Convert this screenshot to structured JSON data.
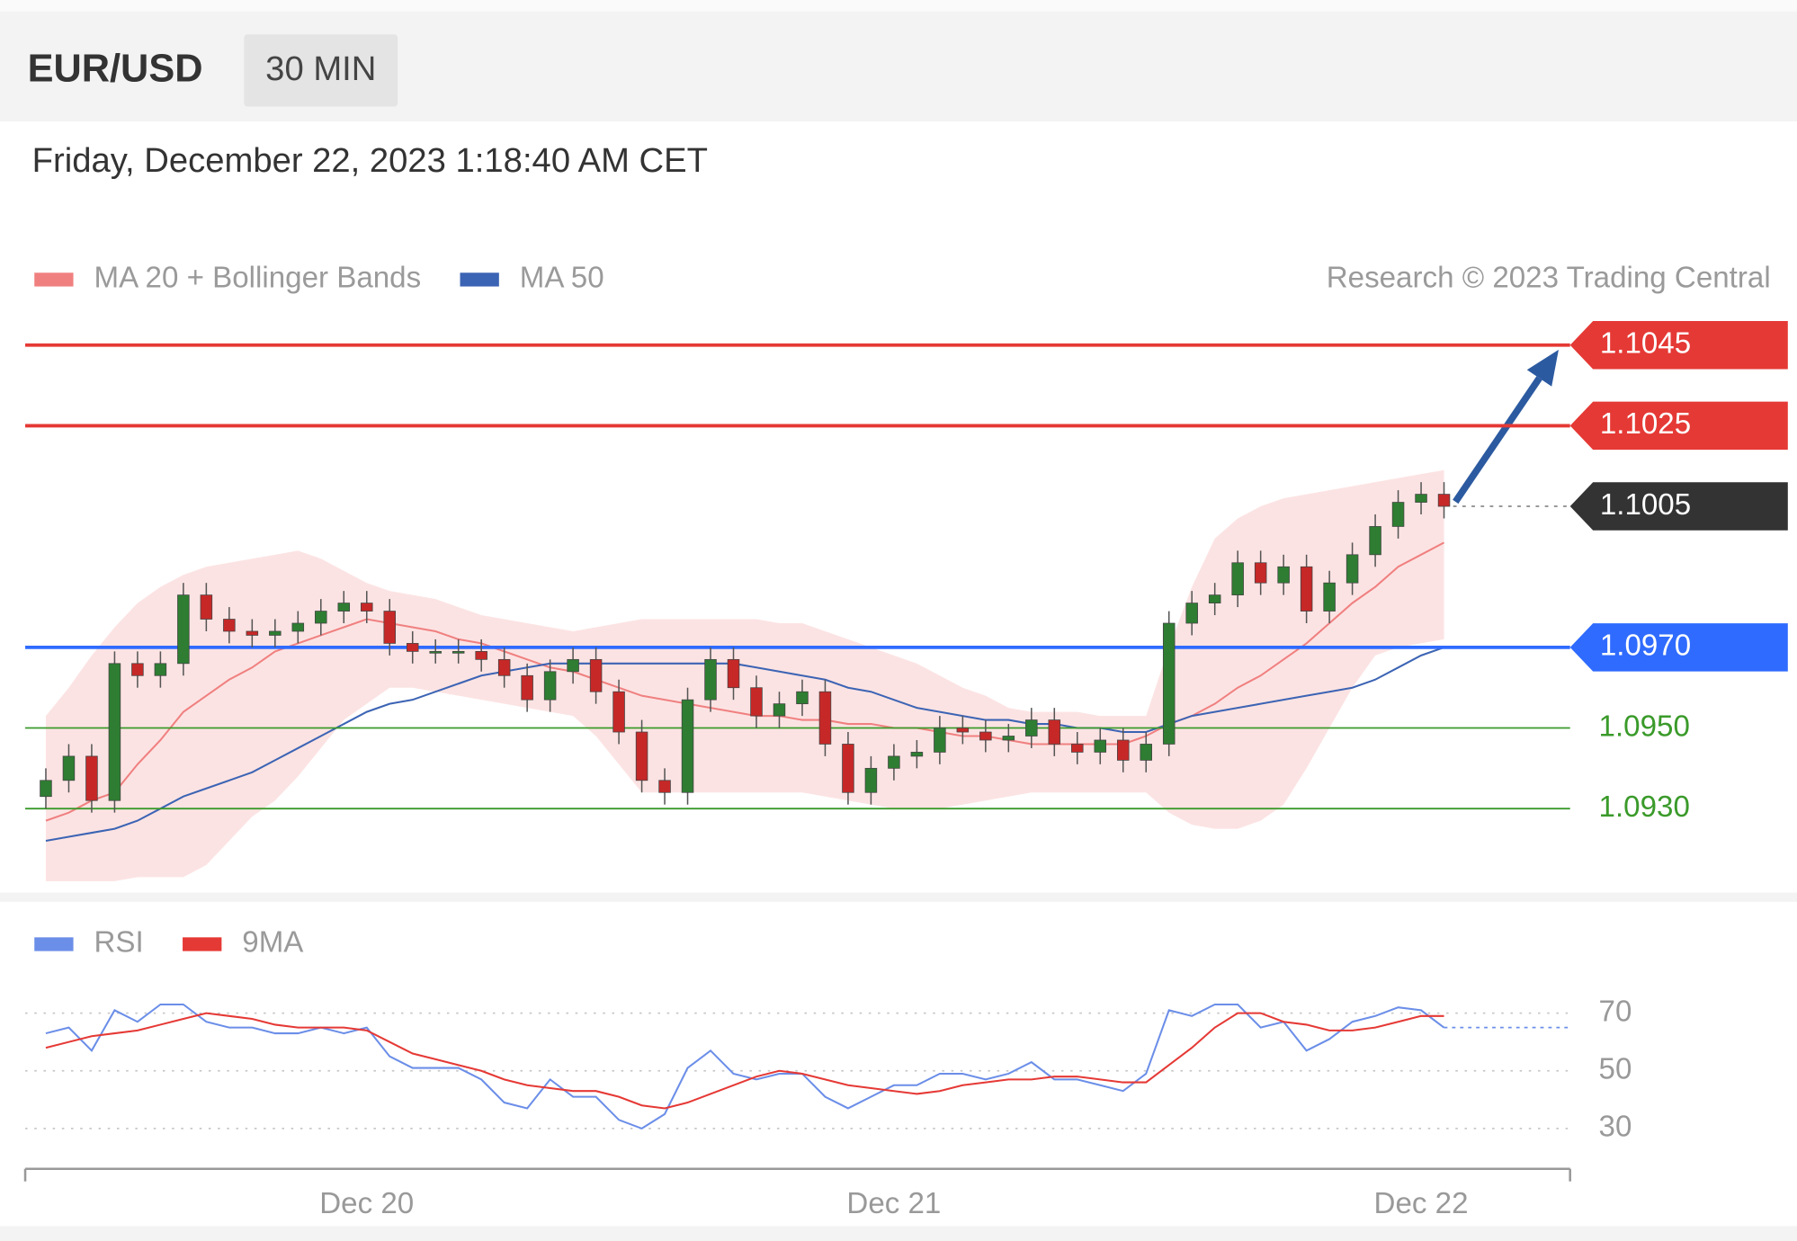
{
  "header": {
    "symbol": "EUR/USD",
    "timeframe": "30 MIN",
    "timestamp": "Friday, December 22, 2023 1:18:40 AM CET"
  },
  "chart_data": [
    {
      "type": "candlestick",
      "credit": "Research © 2023 Trading Central",
      "up_color": "#2e7d32",
      "down_color": "#c62828",
      "categories": [
        null,
        null,
        null,
        null,
        null,
        null,
        null,
        null,
        null,
        null,
        null,
        null,
        null,
        null,
        "Dec 20",
        null,
        null,
        null,
        null,
        null,
        null,
        null,
        null,
        null,
        null,
        null,
        null,
        null,
        null,
        null,
        null,
        null,
        null,
        null,
        null,
        null,
        null,
        "Dec 21",
        null,
        null,
        null,
        null,
        null,
        null,
        null,
        null,
        null,
        null,
        null,
        null,
        null,
        null,
        null,
        null,
        null,
        null,
        null,
        null,
        null,
        null,
        "Dec 22",
        null
      ],
      "open": [
        1.0933,
        1.0937,
        1.0943,
        1.0932,
        1.0966,
        1.0963,
        1.0966,
        1.0983,
        1.0977,
        1.0974,
        1.0973,
        1.0974,
        1.0976,
        1.0979,
        1.0981,
        1.0979,
        1.0971,
        1.0969,
        1.0969,
        1.0969,
        1.0967,
        1.0963,
        1.0957,
        1.0964,
        1.0967,
        1.0959,
        1.0949,
        1.0937,
        1.0934,
        1.0957,
        1.0967,
        1.096,
        1.0953,
        1.0956,
        1.0959,
        1.0946,
        1.0934,
        1.094,
        1.0943,
        1.0944,
        1.095,
        1.0949,
        1.0947,
        1.0948,
        1.0952,
        1.0946,
        1.0944,
        1.0947,
        1.0942,
        1.0946,
        1.0976,
        1.0981,
        1.0983,
        1.0991,
        1.0986,
        1.099,
        1.0979,
        1.0986,
        1.0993,
        1.1,
        1.1006,
        1.1008
      ],
      "high": [
        1.094,
        1.0946,
        1.0946,
        1.0969,
        1.0969,
        1.0969,
        1.0986,
        1.0986,
        1.098,
        1.0977,
        1.0977,
        1.0979,
        1.0982,
        1.0984,
        1.0984,
        1.0982,
        1.0974,
        1.0972,
        1.0972,
        1.0972,
        1.097,
        1.0966,
        1.0967,
        1.097,
        1.097,
        1.0962,
        1.0952,
        1.094,
        1.096,
        1.097,
        1.097,
        1.0963,
        1.0959,
        1.0962,
        1.0962,
        1.0949,
        1.0943,
        1.0946,
        1.0947,
        1.0953,
        1.0953,
        1.0952,
        1.0951,
        1.0955,
        1.0955,
        1.0949,
        1.095,
        1.095,
        1.0949,
        1.0979,
        1.0984,
        1.0986,
        1.0994,
        1.0994,
        1.0993,
        1.0993,
        1.0989,
        1.0996,
        1.1003,
        1.1009,
        1.1011,
        1.1011
      ],
      "low": [
        1.093,
        1.0934,
        1.0929,
        1.0929,
        1.096,
        1.096,
        1.0963,
        1.0974,
        1.0971,
        1.097,
        1.097,
        1.0971,
        1.0973,
        1.0976,
        1.0976,
        1.0968,
        1.0966,
        1.0966,
        1.0966,
        1.0964,
        1.096,
        1.0954,
        1.0954,
        1.0961,
        1.0956,
        1.0946,
        1.0934,
        1.0931,
        1.0931,
        1.0954,
        1.0957,
        1.095,
        1.095,
        1.0953,
        1.0943,
        1.0931,
        1.0931,
        1.0937,
        1.094,
        1.0941,
        1.0946,
        1.0944,
        1.0944,
        1.0945,
        1.0943,
        1.0941,
        1.0941,
        1.0939,
        1.0939,
        1.0943,
        1.0973,
        1.0978,
        1.098,
        1.0983,
        1.0983,
        1.0976,
        1.0976,
        1.0983,
        1.099,
        1.0997,
        1.1003,
        1.1002
      ],
      "close": [
        1.0937,
        1.0943,
        1.0932,
        1.0966,
        1.0963,
        1.0966,
        1.0983,
        1.0977,
        1.0974,
        1.0973,
        1.0974,
        1.0976,
        1.0979,
        1.0981,
        1.0979,
        1.0971,
        1.0969,
        1.0969,
        1.0969,
        1.0967,
        1.0963,
        1.0957,
        1.0964,
        1.0967,
        1.0959,
        1.0949,
        1.0937,
        1.0934,
        1.0957,
        1.0967,
        1.096,
        1.0953,
        1.0956,
        1.0959,
        1.0946,
        1.0934,
        1.094,
        1.0943,
        1.0944,
        1.095,
        1.0949,
        1.0947,
        1.0948,
        1.0952,
        1.0946,
        1.0944,
        1.0947,
        1.0942,
        1.0946,
        1.0976,
        1.0981,
        1.0983,
        1.0991,
        1.0986,
        1.099,
        1.0979,
        1.0986,
        1.0993,
        1.1,
        1.1006,
        1.1008,
        1.1005
      ],
      "series": [
        {
          "name": "MA 20 + Bollinger Bands",
          "color": "#f08080",
          "values": [
            1.0927,
            1.0929,
            1.0932,
            1.0934,
            1.0941,
            1.0947,
            1.0954,
            1.0958,
            1.0962,
            1.0965,
            1.0969,
            1.0971,
            1.0973,
            1.0975,
            1.0977,
            1.0976,
            1.0975,
            1.0974,
            1.0972,
            1.0971,
            1.0969,
            1.0967,
            1.0965,
            1.0964,
            1.0962,
            1.096,
            1.0958,
            1.0957,
            1.0956,
            1.0955,
            1.0954,
            1.0953,
            1.0953,
            1.0952,
            1.0952,
            1.0951,
            1.0951,
            1.095,
            1.095,
            1.0949,
            1.0948,
            1.0948,
            1.0947,
            1.0946,
            1.0946,
            1.0946,
            1.0946,
            1.0946,
            1.0948,
            1.0951,
            1.0953,
            1.0956,
            1.096,
            1.0963,
            1.0967,
            1.0971,
            1.0976,
            1.0981,
            1.0985,
            1.099,
            1.0993,
            1.0996
          ],
          "upper": [
            1.0953,
            1.096,
            1.0968,
            1.0975,
            1.0981,
            1.0985,
            1.0988,
            1.099,
            1.0991,
            1.0992,
            1.0993,
            1.0994,
            1.0992,
            1.0989,
            1.0986,
            1.0984,
            1.0983,
            1.0982,
            1.098,
            1.0978,
            1.0977,
            1.0976,
            1.0975,
            1.0974,
            1.0975,
            1.0976,
            1.0977,
            1.0977,
            1.0977,
            1.0977,
            1.0977,
            1.0977,
            1.0976,
            1.0976,
            1.0974,
            1.0972,
            1.097,
            1.0968,
            1.0966,
            1.0963,
            1.096,
            1.0958,
            1.0955,
            1.0954,
            1.0954,
            1.0954,
            1.0953,
            1.0953,
            1.0953,
            1.097,
            1.0985,
            1.0997,
            1.1002,
            1.1005,
            1.1007,
            1.1008,
            1.1009,
            1.101,
            1.1011,
            1.1012,
            1.1013,
            1.1014
          ],
          "lower": [
            1.0912,
            1.0912,
            1.0912,
            1.0912,
            1.0913,
            1.0913,
            1.0913,
            1.0916,
            1.0922,
            1.0928,
            1.0932,
            1.0938,
            1.0945,
            1.0952,
            1.0956,
            1.096,
            1.096,
            1.0959,
            1.0958,
            1.0957,
            1.0956,
            1.0955,
            1.0954,
            1.0953,
            1.0948,
            1.0941,
            1.0934,
            1.0934,
            1.0934,
            1.0934,
            1.0934,
            1.0934,
            1.0934,
            1.0934,
            1.0933,
            1.0932,
            1.0931,
            1.093,
            1.093,
            1.093,
            1.0931,
            1.0932,
            1.0933,
            1.0934,
            1.0934,
            1.0934,
            1.0934,
            1.0934,
            1.0934,
            1.0929,
            1.0926,
            1.0925,
            1.0925,
            1.0927,
            1.0931,
            1.094,
            1.095,
            1.096,
            1.0968,
            1.097,
            1.0971,
            1.0972
          ]
        },
        {
          "name": "MA 50",
          "color": "#3c64b4",
          "values": [
            1.0922,
            1.0923,
            1.0924,
            1.0925,
            1.0927,
            1.093,
            1.0933,
            1.0935,
            1.0937,
            1.0939,
            1.0942,
            1.0945,
            1.0948,
            1.0951,
            1.0954,
            1.0956,
            1.0957,
            1.0959,
            1.0961,
            1.0963,
            1.0964,
            1.0965,
            1.0966,
            1.0966,
            1.0966,
            1.0966,
            1.0966,
            1.0966,
            1.0966,
            1.0966,
            1.0966,
            1.0965,
            1.0964,
            1.0963,
            1.0962,
            1.096,
            1.0959,
            1.0957,
            1.0955,
            1.0954,
            1.0953,
            1.0952,
            1.0952,
            1.0951,
            1.0951,
            1.095,
            1.095,
            1.0949,
            1.0949,
            1.0951,
            1.0953,
            1.0954,
            1.0955,
            1.0956,
            1.0957,
            1.0958,
            1.0959,
            1.096,
            1.0962,
            1.0965,
            1.0968,
            1.097
          ]
        }
      ],
      "levels": [
        {
          "value": 1.1045,
          "color": "#e53935",
          "line": "solid",
          "tag": true,
          "target": true
        },
        {
          "value": 1.1025,
          "color": "#e53935",
          "line": "solid",
          "tag": true
        },
        {
          "value": 1.1005,
          "color": "#333333",
          "line": "dotted",
          "tag": true
        },
        {
          "value": 1.097,
          "label": "1.0970",
          "color": "#2f6bff",
          "line": "solid",
          "tag": true
        },
        {
          "value": 1.095,
          "label": "1.0950",
          "color": "#3a9a2a",
          "line": "solid",
          "tag": false
        },
        {
          "value": 1.093,
          "label": "1.0930",
          "color": "#3a9a2a",
          "line": "solid",
          "tag": false
        }
      ],
      "ylim": [
        1.091,
        1.1055
      ]
    },
    {
      "type": "line",
      "series": [
        {
          "name": "RSI",
          "color": "#6b8ee8",
          "extend": true,
          "values": [
            63,
            65,
            57,
            71,
            67,
            73,
            73,
            67,
            65,
            65,
            63,
            63,
            65,
            63,
            65,
            55,
            51,
            51,
            51,
            47,
            39,
            37,
            47,
            41,
            41,
            33,
            30,
            35,
            51,
            57,
            49,
            47,
            49,
            49,
            41,
            37,
            41,
            45,
            45,
            49,
            49,
            47,
            49,
            53,
            47,
            47,
            45,
            43,
            49,
            71,
            69,
            73,
            73,
            65,
            67,
            57,
            61,
            67,
            69,
            72,
            71,
            65
          ]
        },
        {
          "name": "9MA",
          "color": "#e53935",
          "values": [
            58,
            60,
            62,
            63,
            64,
            66,
            68,
            70,
            69,
            68,
            66,
            65,
            65,
            65,
            64,
            60,
            56,
            54,
            52,
            50,
            47,
            45,
            44,
            43,
            43,
            41,
            38,
            37,
            39,
            42,
            45,
            48,
            50,
            49,
            47,
            45,
            44,
            43,
            42,
            43,
            45,
            46,
            47,
            47,
            48,
            48,
            47,
            46,
            46,
            52,
            58,
            65,
            70,
            70,
            67,
            66,
            64,
            64,
            65,
            67,
            69,
            69
          ]
        }
      ],
      "ylim": [
        20,
        78
      ],
      "yticks": [
        70,
        50,
        30
      ],
      "grid": true
    }
  ]
}
